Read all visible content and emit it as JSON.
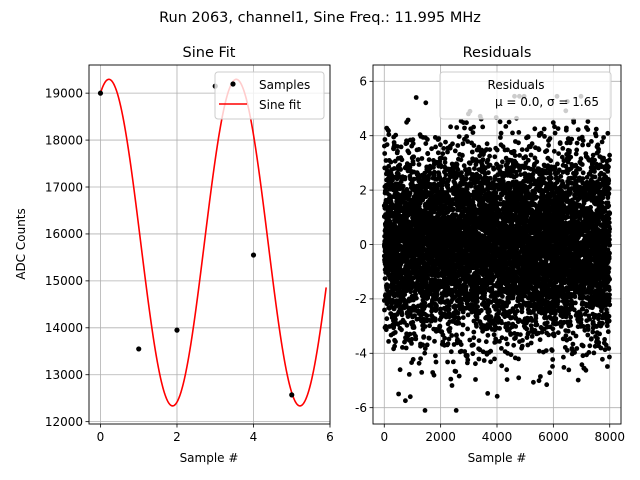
{
  "figure": {
    "suptitle": "Run 2063, channel1, Sine Freq.: 11.995 MHz"
  },
  "chart_data": [
    {
      "type": "line",
      "title": "Sine Fit",
      "xlabel": "Sample #",
      "ylabel": "ADC Counts",
      "xlim": [
        -0.3,
        6.0
      ],
      "ylim": [
        11950,
        19600
      ],
      "xticks": [
        0,
        2,
        4,
        6
      ],
      "yticks": [
        12000,
        13000,
        14000,
        15000,
        16000,
        17000,
        18000,
        19000
      ],
      "grid": true,
      "legend": {
        "position": "top-right",
        "entries": [
          "Samples",
          "Sine fit"
        ]
      },
      "series": [
        {
          "name": "Samples",
          "kind": "scatter",
          "color": "#000000",
          "x": [
            0,
            1,
            2,
            3,
            4,
            5
          ],
          "y": [
            19000,
            13550,
            13950,
            19150,
            15550,
            12570
          ]
        },
        {
          "name": "Sine fit",
          "kind": "line",
          "color": "#ff0000",
          "function": "sine",
          "offset": 15815,
          "amplitude": 3480,
          "period_samples": 3.33,
          "x_range": [
            0,
            5.9
          ]
        }
      ]
    },
    {
      "type": "scatter",
      "title": "Residuals",
      "xlabel": "Sample #",
      "ylabel": "",
      "xlim": [
        -400,
        8400
      ],
      "ylim": [
        -6.6,
        6.6
      ],
      "xticks": [
        0,
        2000,
        4000,
        6000,
        8000
      ],
      "yticks": [
        -6,
        -4,
        -2,
        0,
        2,
        4,
        6
      ],
      "grid": true,
      "legend": {
        "position": "top-right",
        "entries": [
          "Residuals",
          "μ = 0.0, σ = 1.65"
        ]
      },
      "series": [
        {
          "name": "Residuals",
          "color": "#000000",
          "n_points": 8000,
          "x_range": [
            0,
            7999
          ],
          "mean": 0.0,
          "std": 1.65,
          "min": -6.1,
          "max": 5.45
        }
      ]
    }
  ]
}
